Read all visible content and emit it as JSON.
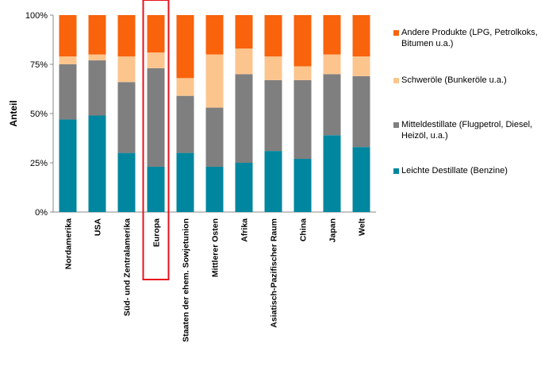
{
  "chart_data": {
    "type": "bar",
    "stacked": true,
    "ylabel": "Anteil",
    "ylim": [
      0,
      100
    ],
    "yticks": [
      "0%",
      "25%",
      "50%",
      "75%",
      "100%"
    ],
    "categories": [
      "Nordamerika",
      "USA",
      "Süd- und Zentralamerika",
      "Europa",
      "Staaten der ehem. Sowjetunion",
      "Mittlerer Osten",
      "Afrika",
      "Asiatisch-Pazifischer Raum",
      "China",
      "Japan",
      "Welt"
    ],
    "highlighted_category": "Europa",
    "series": [
      {
        "name": "Leichte Destillate (Benzine)",
        "color": "#00869e",
        "values": [
          47,
          49,
          30,
          23,
          30,
          23,
          25,
          31,
          27,
          39,
          33
        ]
      },
      {
        "name": "Mitteldestillate (Flugpetrol, Diesel, Heizöl, u.a.)",
        "color": "#7f7f7f",
        "values": [
          28,
          28,
          36,
          50,
          29,
          30,
          45,
          36,
          40,
          31,
          36
        ]
      },
      {
        "name": "Schweröle (Bunkeröle u.a.)",
        "color": "#fcc58e",
        "values": [
          4,
          3,
          13,
          8,
          9,
          27,
          13,
          12,
          7,
          10,
          10
        ]
      },
      {
        "name": "Andere Produkte (LPG, Petrolkoks, Bitumen u.a.)",
        "color": "#f8630c",
        "values": [
          21,
          20,
          21,
          19,
          32,
          20,
          17,
          21,
          26,
          20,
          21
        ]
      }
    ],
    "legend_position": "right",
    "highlight_color": "#e8121c",
    "grid": false
  }
}
